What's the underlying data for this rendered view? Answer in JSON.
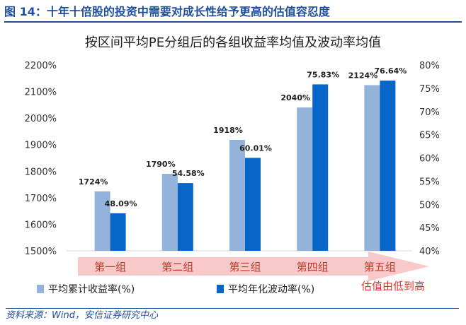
{
  "figure_title": "图 14：十年十倍股的投资中需要对成长性给予更高的估值容忍度",
  "source_note": "资料来源：Wind，安信证券研究中心",
  "colors": {
    "heading": "#1f4e9b",
    "series_1": "#94b3db",
    "series_2": "#0866c9",
    "arrow_fill": "#f7c9c9",
    "arrow_text": "#e8322f",
    "group_label": "#c0392b"
  },
  "chart_data": {
    "type": "bar",
    "title": "按区间平均PE分组后的各组收益率均值及波动率均值",
    "categories": [
      "第一组",
      "第二组",
      "第三组",
      "第四组",
      "第五组"
    ],
    "series": [
      {
        "name": "平均累计收益率(%)",
        "axis": "left",
        "values": [
          1724,
          1790,
          1918,
          2040,
          2124
        ],
        "labels": [
          "1724%",
          "1790%",
          "1918%",
          "2040%",
          "2124%"
        ]
      },
      {
        "name": "平均年化波动率(%)",
        "axis": "right",
        "values": [
          48.09,
          54.58,
          60.01,
          75.83,
          76.64
        ],
        "labels": [
          "48.09%",
          "54.58%",
          "60.01%",
          "75.83%",
          "76.64%"
        ]
      }
    ],
    "left_axis": {
      "min": 1500,
      "max": 2200,
      "ticks": [
        1500,
        1600,
        1700,
        1800,
        1900,
        2000,
        2100,
        2200
      ],
      "tick_labels": [
        "1500%",
        "1600%",
        "1700%",
        "1800%",
        "1900%",
        "2000%",
        "2100%",
        "2200%"
      ]
    },
    "right_axis": {
      "min": 40,
      "max": 80,
      "ticks": [
        40,
        45,
        50,
        55,
        60,
        65,
        70,
        75,
        80
      ],
      "tick_labels": [
        "40%",
        "45%",
        "50%",
        "55%",
        "60%",
        "65%",
        "70%",
        "75%",
        "80%"
      ]
    },
    "arrow_annotation": "估值由低到高",
    "grid": false,
    "legend_position": "bottom-left"
  }
}
